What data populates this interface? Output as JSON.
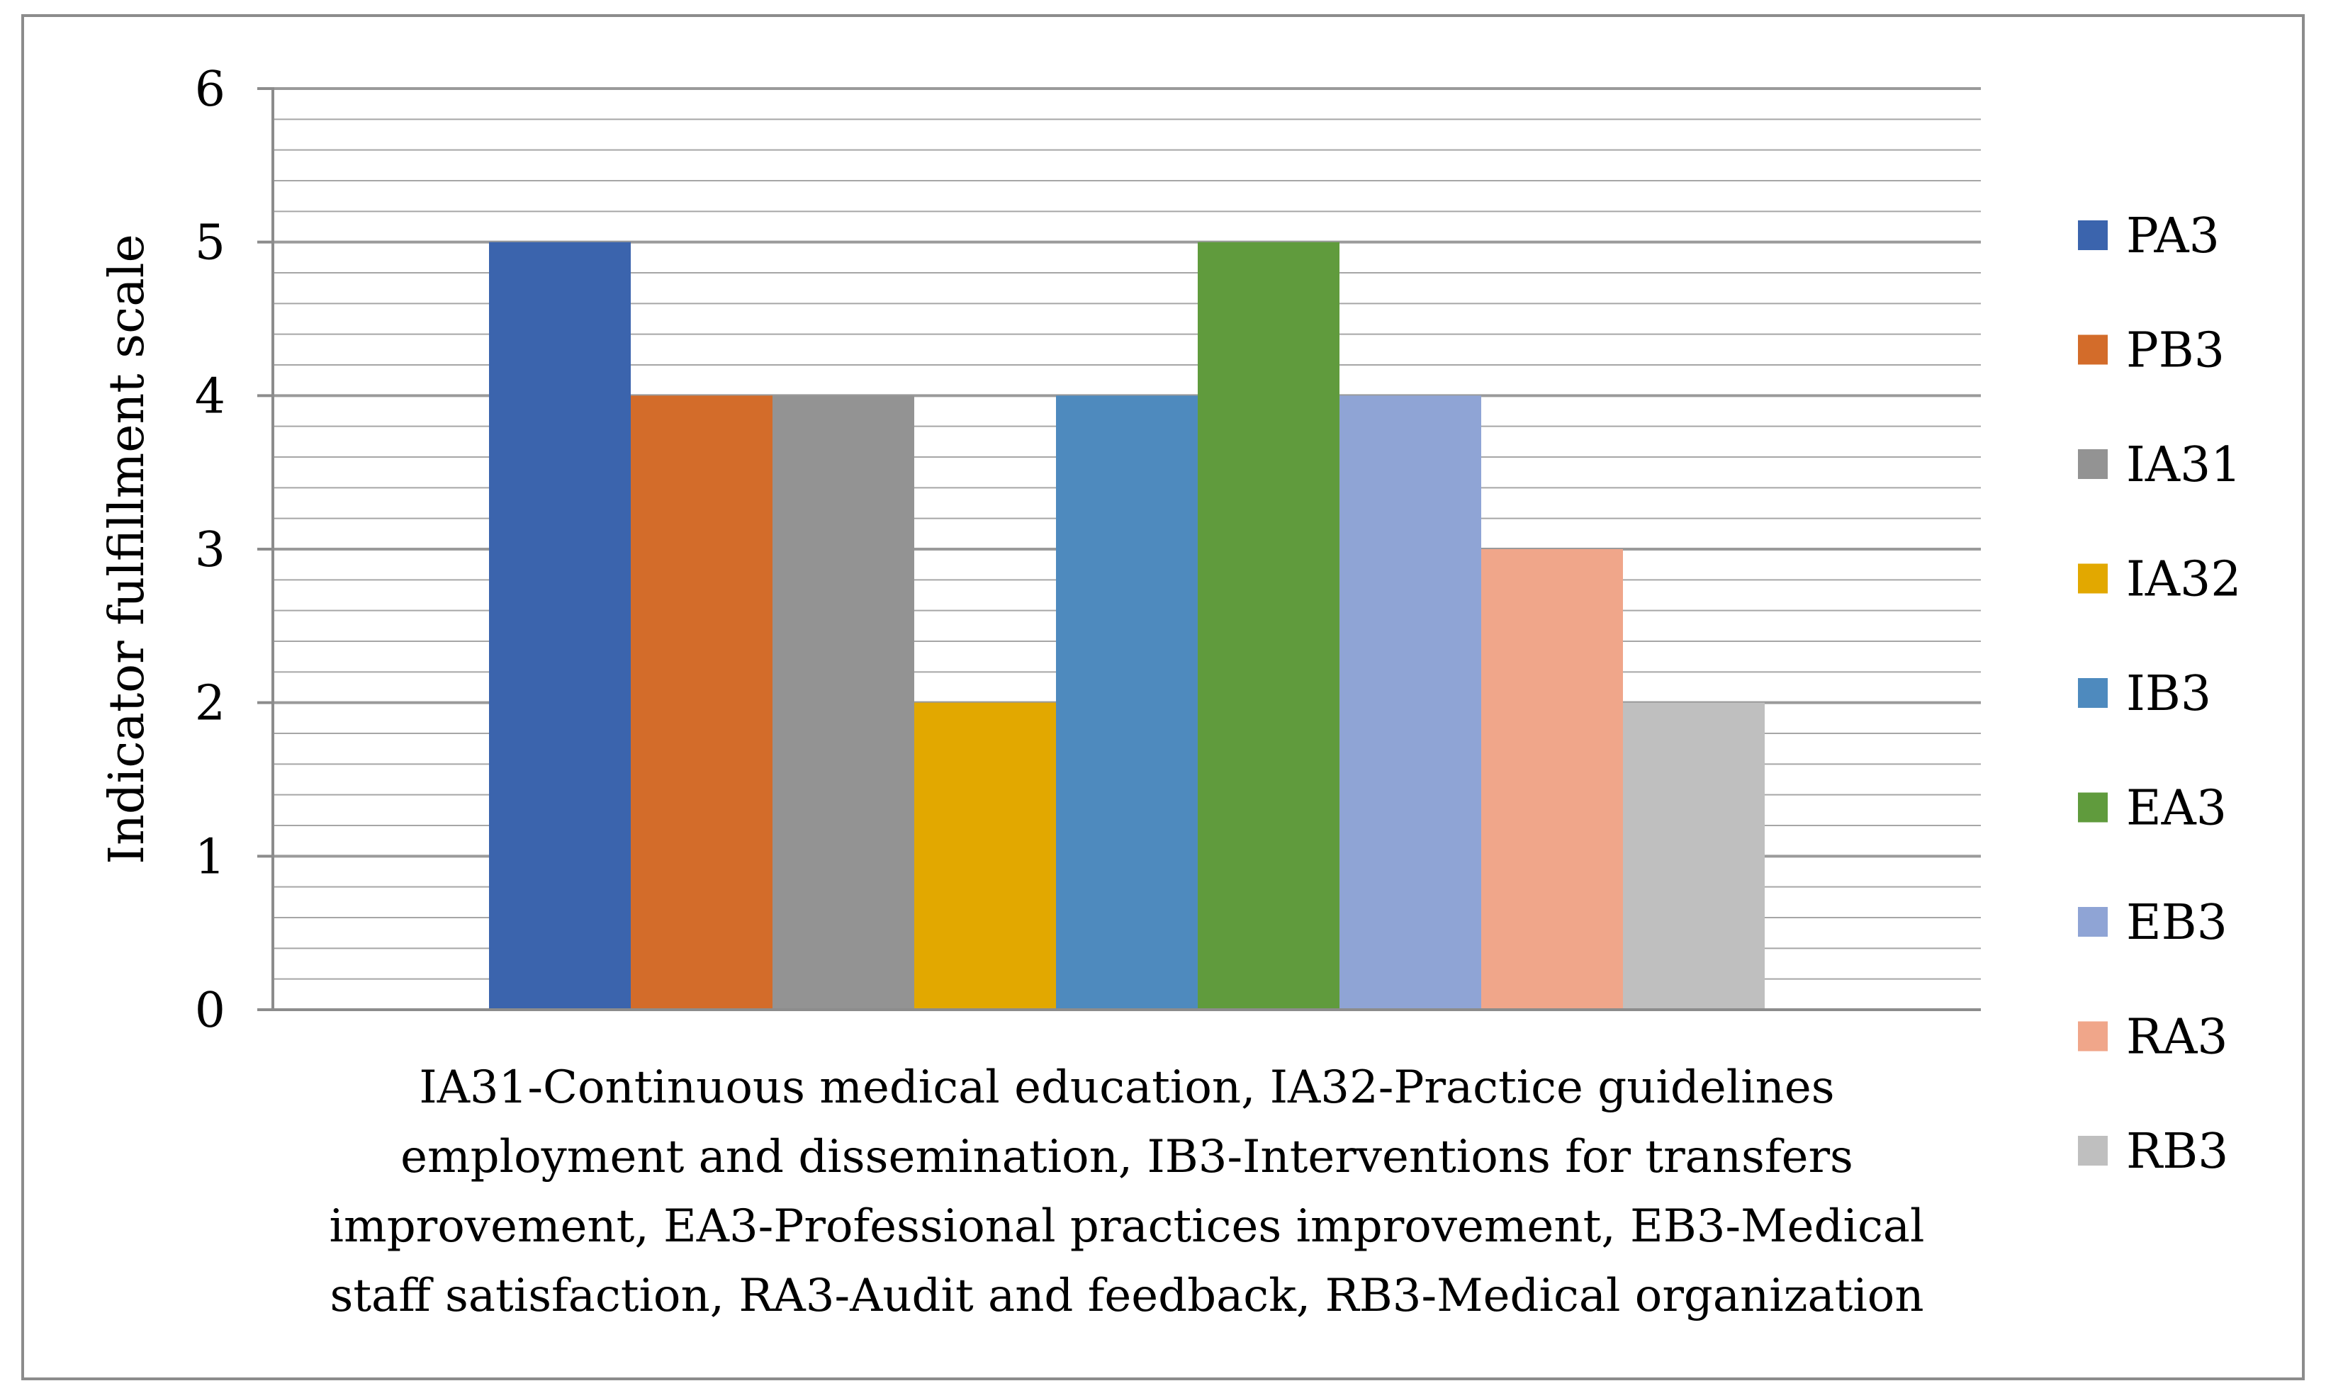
{
  "chart_data": {
    "type": "bar",
    "title": "",
    "categories": [
      ""
    ],
    "series": [
      {
        "name": "PA3",
        "values": [
          5
        ],
        "color": "#3b64ad"
      },
      {
        "name": "PB3",
        "values": [
          4
        ],
        "color": "#d36c2a"
      },
      {
        "name": "IA31",
        "values": [
          4
        ],
        "color": "#939393"
      },
      {
        "name": "IA32",
        "values": [
          2
        ],
        "color": "#e2a800"
      },
      {
        "name": "IB3",
        "values": [
          4
        ],
        "color": "#4e8abe"
      },
      {
        "name": "EA3",
        "values": [
          5
        ],
        "color": "#609b3d"
      },
      {
        "name": "EB3",
        "values": [
          4
        ],
        "color": "#8fa4d5"
      },
      {
        "name": "RA3",
        "values": [
          3
        ],
        "color": "#f0a68a"
      },
      {
        "name": "RB3",
        "values": [
          2
        ],
        "color": "#bfbfbf"
      }
    ],
    "ylabel": "Indicator fulfillment scale",
    "xlabel_lines": [
      "IA31-Continuous medical education, IA32-Practice guidelines",
      "employment and dissemination, IB3-Interventions for transfers",
      "improvement, EA3-Professional practices improvement, EB3-Medical",
      "staff satisfaction, RA3-Audit and feedback, RB3-Medical organization"
    ],
    "ylim": [
      0,
      6
    ],
    "y_ticks": [
      "0",
      "1",
      "2",
      "3",
      "4",
      "5",
      "6"
    ],
    "minor_gridlines_per_unit": 5,
    "grid": true,
    "legend_position": "right",
    "gridline_color": "#a6a6a6",
    "axis_color": "#8c8c8c"
  }
}
